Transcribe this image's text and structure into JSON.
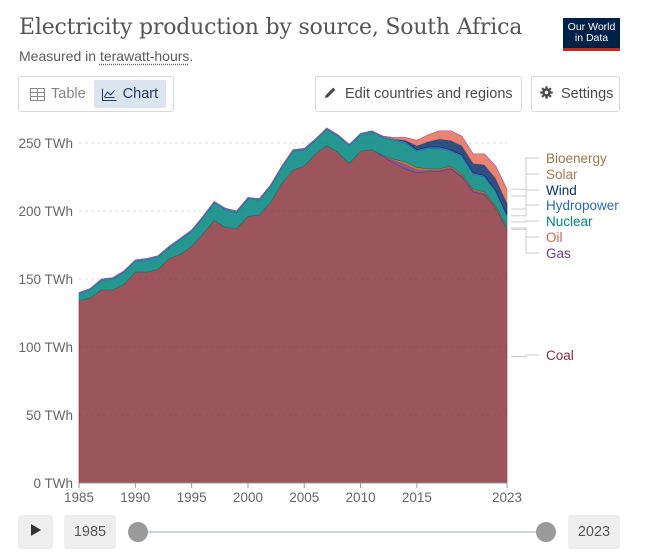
{
  "header": {
    "title": "Electricity production by source, South Africa",
    "subtitle_prefix": "Measured in ",
    "subtitle_unit": "terawatt-hours",
    "subtitle_suffix": ".",
    "logo_line1": "Our World",
    "logo_line2": "in Data"
  },
  "tabs": [
    {
      "label": "Table",
      "icon": "table-icon"
    },
    {
      "label": "Chart",
      "icon": "chart-icon",
      "active": true
    }
  ],
  "buttons": {
    "edit": "Edit countries and regions",
    "settings": "Settings"
  },
  "timeline": {
    "start_year": "1985",
    "end_year": "2023"
  },
  "chart_data": {
    "type": "area",
    "stacked": true,
    "x": [
      1985,
      1986,
      1987,
      1988,
      1989,
      1990,
      1991,
      1992,
      1993,
      1994,
      1995,
      1996,
      1997,
      1998,
      1999,
      2000,
      2001,
      2002,
      2003,
      2004,
      2005,
      2006,
      2007,
      2008,
      2009,
      2010,
      2011,
      2012,
      2013,
      2014,
      2015,
      2016,
      2017,
      2018,
      2019,
      2020,
      2021,
      2022,
      2023
    ],
    "x_ticks": [
      "1985",
      "1990",
      "1995",
      "2000",
      "2005",
      "2010",
      "2015",
      "2023"
    ],
    "y_ticks": [
      "0 TWh",
      "50 TWh",
      "100 TWh",
      "150 TWh",
      "200 TWh",
      "250 TWh"
    ],
    "ylim": [
      0,
      250
    ],
    "grid": "horizontal-dashed",
    "legend": "right-labels",
    "series": [
      {
        "name": "Coal",
        "color": "#883039",
        "values": [
          134,
          136,
          142,
          142,
          146,
          155,
          155,
          157,
          165,
          168,
          174,
          183,
          193,
          188,
          187,
          196,
          197,
          206,
          220,
          230,
          233,
          242,
          248,
          243,
          235,
          244,
          245,
          240,
          235,
          231,
          228,
          229,
          229,
          231,
          225,
          214,
          212,
          202,
          186
        ]
      },
      {
        "name": "Gas",
        "color": "#6d3e91",
        "values": [
          0,
          0,
          0,
          0,
          0,
          0,
          0,
          0,
          0,
          0,
          0,
          0,
          0,
          0,
          0,
          0,
          0,
          0,
          0,
          0,
          0,
          0,
          0,
          0,
          0,
          0,
          0,
          1,
          2,
          3,
          2,
          1,
          1,
          1,
          1,
          1,
          1,
          1,
          1
        ]
      },
      {
        "name": "Oil",
        "color": "#c05917",
        "values": [
          0,
          0,
          0,
          0,
          0,
          0,
          0,
          0,
          0,
          0,
          0,
          0,
          0,
          0,
          0,
          0,
          0,
          0,
          0,
          0,
          0,
          0,
          0,
          0,
          0,
          0,
          0,
          0,
          1,
          2,
          2,
          1,
          1,
          1,
          1,
          1,
          1,
          1,
          1
        ]
      },
      {
        "name": "Nuclear",
        "color": "#00847e",
        "values": [
          5,
          6,
          7,
          8,
          9,
          8,
          9,
          9,
          8,
          11,
          11,
          12,
          13,
          13,
          12,
          13,
          11,
          12,
          12,
          14,
          12,
          10,
          12,
          12,
          13,
          12,
          13,
          13,
          14,
          14,
          12,
          15,
          15,
          11,
          13,
          11,
          11,
          10,
          8
        ]
      },
      {
        "name": "Hydropower",
        "color": "#286bbb",
        "values": [
          1,
          1,
          1,
          1,
          1,
          1,
          1,
          1,
          1,
          1,
          1,
          1,
          1,
          1,
          1,
          1,
          1,
          1,
          1,
          1,
          1,
          1,
          1,
          1,
          1,
          1,
          1,
          1,
          1,
          1,
          1,
          1,
          1,
          1,
          1,
          1,
          1,
          1,
          1
        ]
      },
      {
        "name": "Wind",
        "color": "#0a2f6b",
        "values": [
          0,
          0,
          0,
          0,
          0,
          0,
          0,
          0,
          0,
          0,
          0,
          0,
          0,
          0,
          0,
          0,
          0,
          0,
          0,
          0,
          0,
          0,
          0,
          0,
          0,
          0,
          0,
          0,
          0,
          1,
          3,
          4,
          6,
          7,
          7,
          7,
          8,
          9,
          9
        ]
      },
      {
        "name": "Solar",
        "color": "#e56e5a",
        "values": [
          0,
          0,
          0,
          0,
          0,
          0,
          0,
          0,
          0,
          0,
          0,
          0,
          0,
          0,
          0,
          0,
          0,
          0,
          0,
          0,
          0,
          0,
          0,
          0,
          0,
          0,
          0,
          0,
          1,
          2,
          4,
          5,
          6,
          7,
          7,
          7,
          8,
          9,
          10
        ]
      },
      {
        "name": "Bioenergy",
        "color": "#a2559c",
        "values": [
          0,
          0,
          0,
          0,
          0,
          0,
          0,
          0,
          0,
          0,
          0,
          0,
          0,
          0,
          0,
          0,
          0,
          0,
          0,
          0,
          0,
          0,
          0,
          0,
          0,
          0,
          0,
          0,
          0,
          0,
          0,
          0,
          0,
          0,
          0,
          0,
          0,
          0,
          0
        ]
      }
    ],
    "labels": [
      {
        "name": "Bioenergy",
        "color": "#9a7a4a"
      },
      {
        "name": "Solar",
        "color": "#b8734e"
      },
      {
        "name": "Wind",
        "color": "#0a2f6b"
      },
      {
        "name": "Hydropower",
        "color": "#286bbb"
      },
      {
        "name": "Nuclear",
        "color": "#00847e"
      },
      {
        "name": "Oil",
        "color": "#d2664f"
      },
      {
        "name": "Gas",
        "color": "#6d3e91"
      },
      {
        "name": "Coal",
        "color": "#883039"
      }
    ]
  }
}
